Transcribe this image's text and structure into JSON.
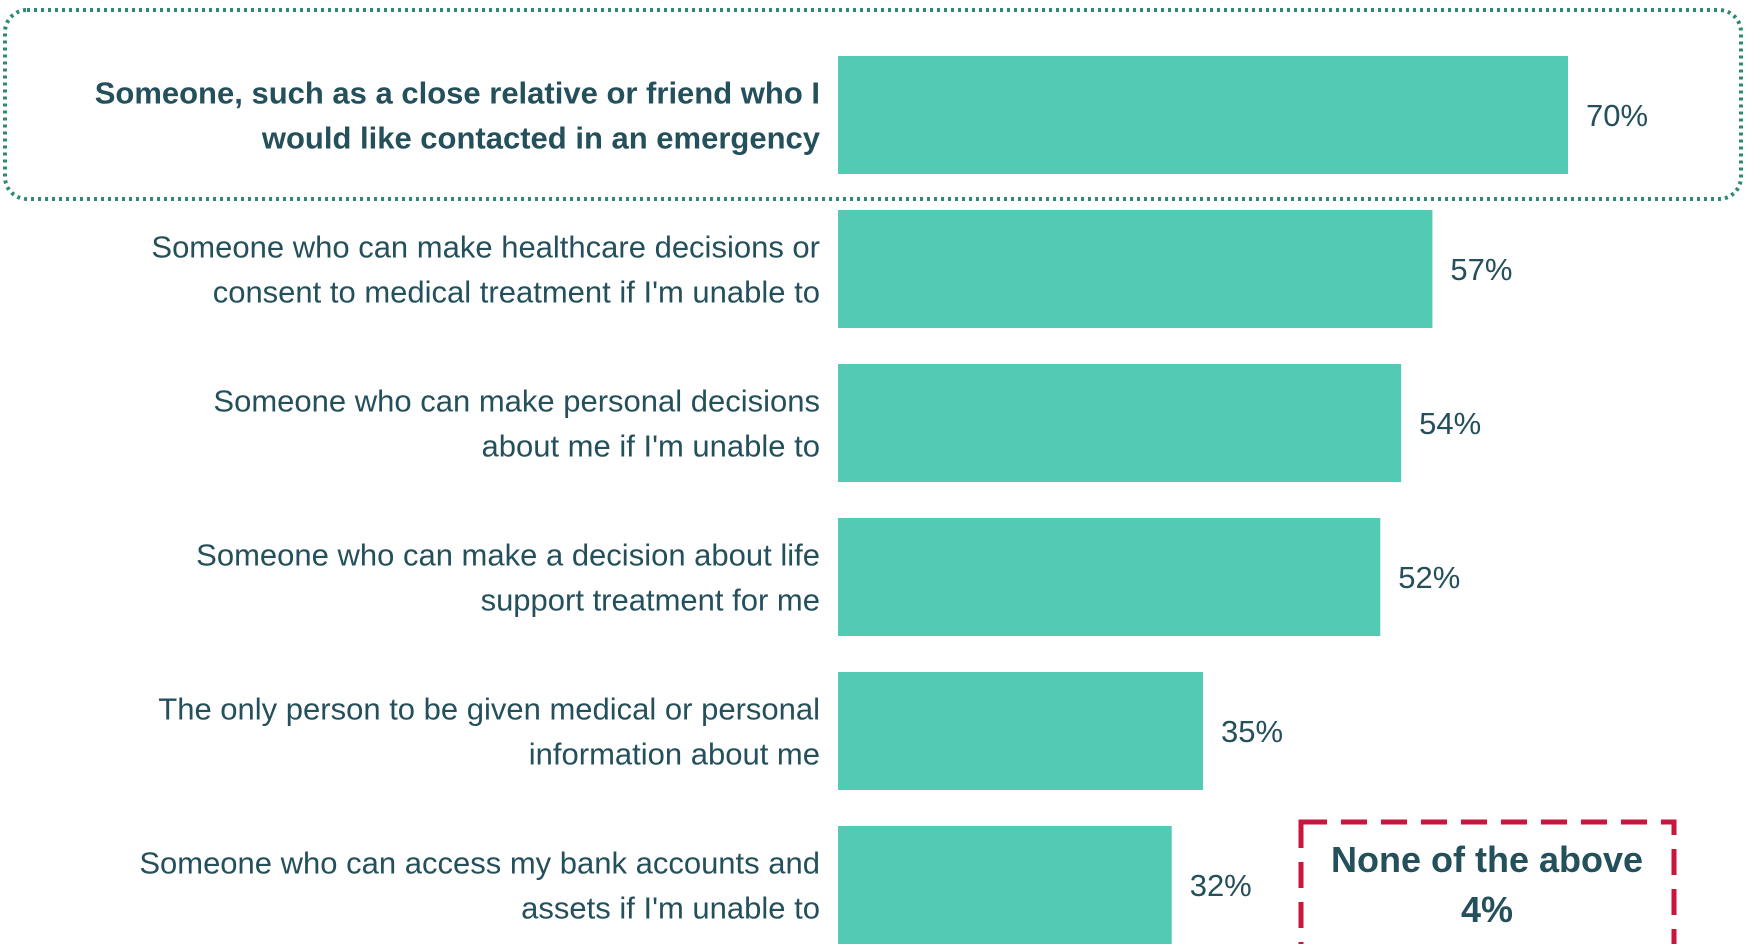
{
  "colors": {
    "bar": "#52cab4",
    "text": "#24505c",
    "highlight_border": "#2e8a73",
    "callout_border": "#c8163e"
  },
  "chart_data": {
    "type": "bar",
    "orientation": "horizontal",
    "categories": [
      [
        "Someone, such as a close relative or friend who I",
        "would like contacted in an emergency"
      ],
      [
        "Someone who can make healthcare decisions or",
        "consent to medical treatment if I'm unable to"
      ],
      [
        "Someone who can make personal decisions",
        "about me if I'm unable to"
      ],
      [
        "Someone who can make a decision about life",
        "support treatment for me"
      ],
      [
        "The only person to be given medical or personal",
        "information about me"
      ],
      [
        "Someone who can access my bank accounts and",
        "assets if I'm unable to"
      ]
    ],
    "values": [
      70,
      57,
      54,
      52,
      35,
      32
    ],
    "data_labels": [
      "70%",
      "57%",
      "54%",
      "52%",
      "35%",
      "32%"
    ],
    "highlighted_index": 0,
    "xlim": [
      0,
      100
    ],
    "grid": false,
    "title": "",
    "xlabel": "",
    "ylabel": ""
  },
  "callout": {
    "label": "None of the above",
    "value": "4%"
  }
}
